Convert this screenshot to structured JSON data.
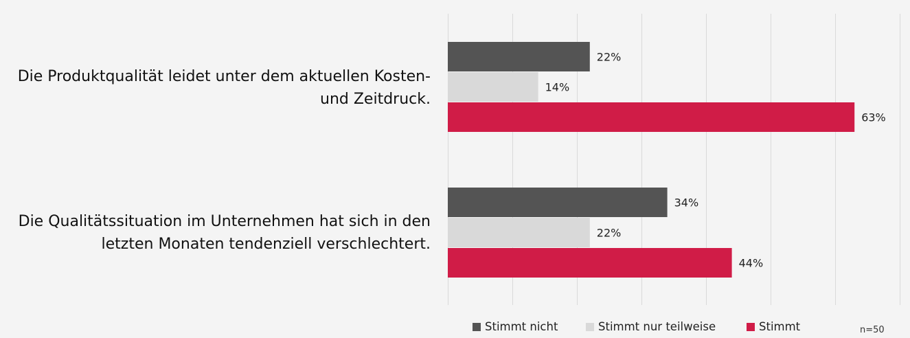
{
  "chart_data": {
    "type": "bar",
    "orientation": "horizontal",
    "categories": [
      "Die Produktqualität leidet unter dem aktuellen Kosten- und Zeitdruck.",
      "Die Qualitätssituation im Unternehmen hat sich in den letzten Monaten tendenziell verschlechtert."
    ],
    "category_lines": [
      [
        "Die Produktqualität leidet unter dem aktuellen Kosten-",
        "und Zeitdruck."
      ],
      [
        "Die Qualitätssituation im Unternehmen hat sich in den",
        "letzten Monaten tendenziell verschlechtert."
      ]
    ],
    "series": [
      {
        "name": "Stimmt nicht",
        "values": [
          22,
          34
        ],
        "labels": [
          "22%",
          "34%"
        ],
        "color": "#545454"
      },
      {
        "name": "Stimmt nur teilweise",
        "values": [
          14,
          22
        ],
        "labels": [
          "14%",
          "22%"
        ],
        "color": "#d9d9d9"
      },
      {
        "name": "Stimmt",
        "values": [
          63,
          44
        ],
        "labels": [
          "63%",
          "44%"
        ],
        "color": "#d01c47"
      }
    ],
    "xlim": [
      0,
      70
    ],
    "grid": true,
    "gridline_color": "#d9d9d9",
    "legend_position": "bottom",
    "note": "n=50"
  }
}
